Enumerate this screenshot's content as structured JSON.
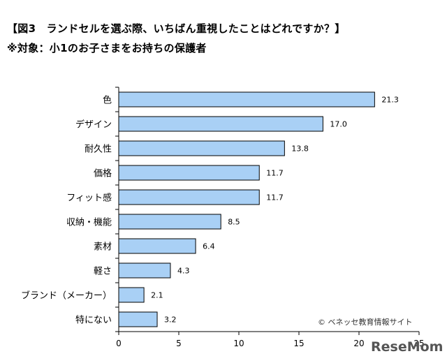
{
  "chart_data": {
    "type": "bar",
    "orientation": "horizontal",
    "title": "【図3　ランドセルを選ぶ際、いちばん重視したことはどれですか？】",
    "subtitle": "※対象：小1のお子さまをお持ちの保護者",
    "categories": [
      "色",
      "デザイン",
      "耐久性",
      "価格",
      "フィット感",
      "収納・機能",
      "素材",
      "軽さ",
      "ブランド（メーカー）",
      "特にない"
    ],
    "values": [
      21.3,
      17.0,
      13.8,
      11.7,
      11.7,
      8.5,
      6.4,
      4.3,
      2.1,
      3.2
    ],
    "value_labels": [
      "21.3",
      "17.0",
      "13.8",
      "11.7",
      "11.7",
      "8.5",
      "6.4",
      "4.3",
      "2.1",
      "3.2"
    ],
    "xlim": [
      0,
      25
    ],
    "xticks": [
      "0",
      "5",
      "10",
      "15",
      "20",
      "25"
    ],
    "bar_color": "#a9d0f5",
    "bar_edge_color": "#000000",
    "grid": false,
    "xlabel": "",
    "ylabel": ""
  },
  "credit": "© ベネッセ教育情報サイト",
  "watermark": "ReseMom"
}
